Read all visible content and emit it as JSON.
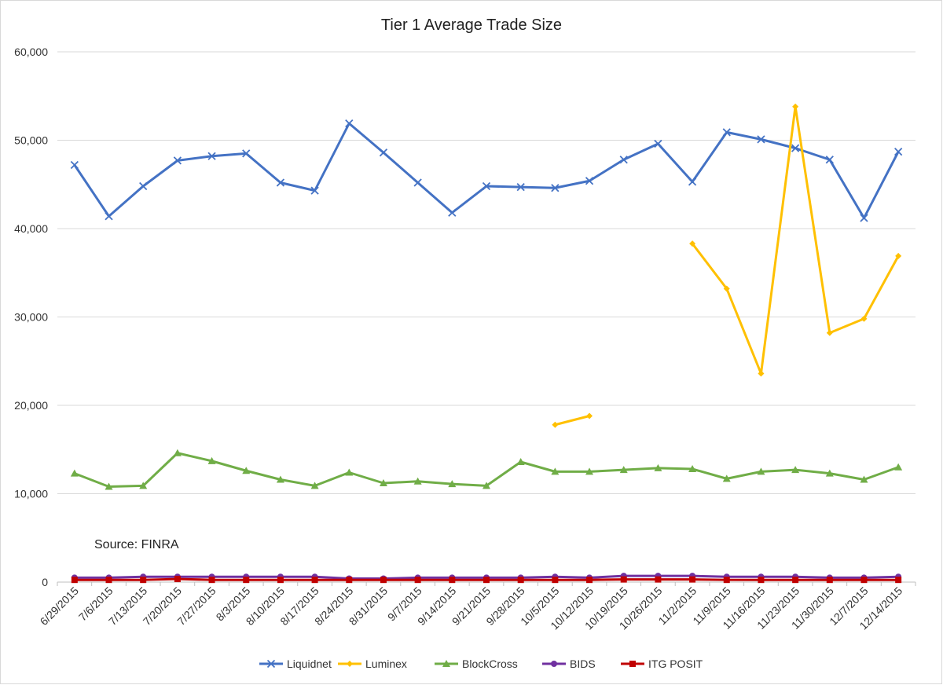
{
  "chart_data": {
    "type": "line",
    "title": "Tier 1 Average Trade Size",
    "annotation": "Source: FINRA",
    "xlabel": "",
    "ylabel": "",
    "ylim": [
      0,
      60000
    ],
    "yticks": [
      0,
      10000,
      20000,
      30000,
      40000,
      50000,
      60000
    ],
    "ytick_labels": [
      "0",
      "10,000",
      "20,000",
      "30,000",
      "40,000",
      "50,000",
      "60,000"
    ],
    "grid": true,
    "legend_position": "bottom",
    "categories": [
      "6/29/2015",
      "7/6/2015",
      "7/13/2015",
      "7/20/2015",
      "7/27/2015",
      "8/3/2015",
      "8/10/2015",
      "8/17/2015",
      "8/24/2015",
      "8/31/2015",
      "9/7/2015",
      "9/14/2015",
      "9/21/2015",
      "9/28/2015",
      "10/5/2015",
      "10/12/2015",
      "10/19/2015",
      "10/26/2015",
      "11/2/2015",
      "11/9/2015",
      "11/16/2015",
      "11/23/2015",
      "11/30/2015",
      "12/7/2015",
      "12/14/2015"
    ],
    "series": [
      {
        "name": "Liquidnet",
        "color": "#4472C4",
        "marker": "x",
        "values": [
          47200,
          41400,
          44800,
          47700,
          48200,
          48500,
          45200,
          44300,
          51900,
          48600,
          45200,
          41800,
          44800,
          44700,
          44600,
          45400,
          47800,
          49600,
          45300,
          50900,
          50100,
          49100,
          47800,
          41200,
          48700
        ]
      },
      {
        "name": "Luminex",
        "color": "#FFC000",
        "marker": "diamond",
        "values": [
          null,
          null,
          null,
          null,
          null,
          null,
          null,
          null,
          null,
          null,
          null,
          null,
          null,
          null,
          17800,
          18800,
          null,
          null,
          38300,
          33200,
          23600,
          53800,
          28200,
          29800,
          36900
        ]
      },
      {
        "name": "BlockCross",
        "color": "#70AD47",
        "marker": "triangle",
        "values": [
          12300,
          10800,
          10900,
          14600,
          13700,
          12600,
          11600,
          10900,
          12400,
          11200,
          11400,
          11100,
          10900,
          13600,
          12500,
          12500,
          12700,
          12900,
          12800,
          11700,
          12500,
          12700,
          12300,
          11600,
          13000
        ]
      },
      {
        "name": "BIDS",
        "color": "#7030A0",
        "marker": "circle",
        "values": [
          500,
          500,
          600,
          600,
          600,
          600,
          600,
          600,
          400,
          400,
          500,
          500,
          500,
          500,
          600,
          500,
          700,
          700,
          700,
          600,
          600,
          600,
          500,
          500,
          600
        ]
      },
      {
        "name": "ITG POSIT",
        "color": "#C00000",
        "marker": "square",
        "values": [
          250,
          250,
          250,
          350,
          250,
          250,
          250,
          250,
          250,
          250,
          250,
          250,
          250,
          250,
          250,
          250,
          300,
          300,
          300,
          250,
          250,
          250,
          250,
          250,
          250
        ]
      }
    ]
  }
}
